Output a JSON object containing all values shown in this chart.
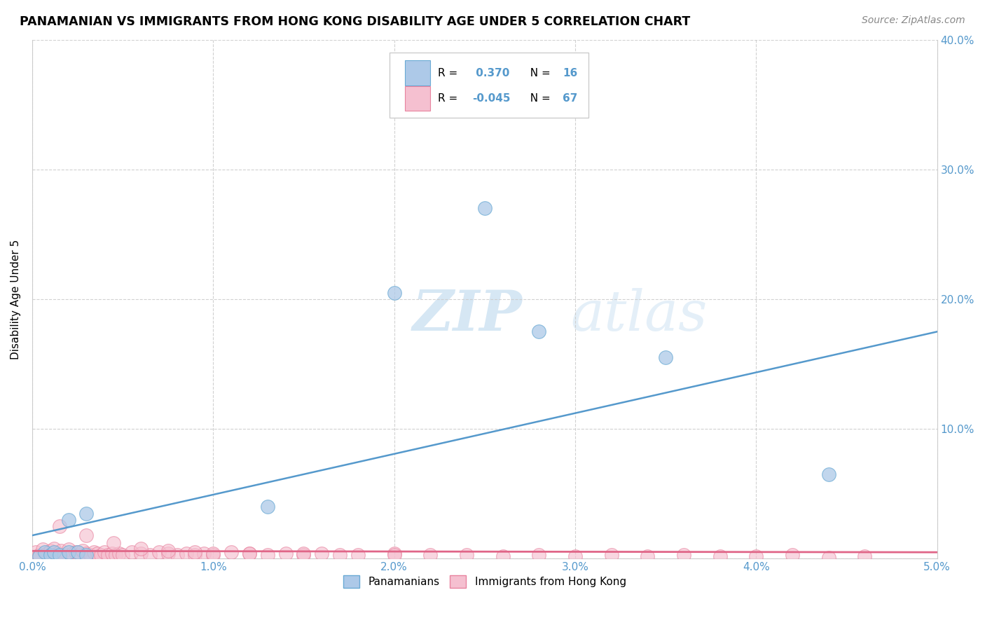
{
  "title": "PANAMANIAN VS IMMIGRANTS FROM HONG KONG DISABILITY AGE UNDER 5 CORRELATION CHART",
  "source": "Source: ZipAtlas.com",
  "ylabel": "Disability Age Under 5",
  "xlim": [
    0.0,
    0.05
  ],
  "ylim": [
    0.0,
    0.4
  ],
  "xticks": [
    0.0,
    0.01,
    0.02,
    0.03,
    0.04,
    0.05
  ],
  "yticks": [
    0.0,
    0.1,
    0.2,
    0.3,
    0.4
  ],
  "xticklabels": [
    "0.0%",
    "1.0%",
    "2.0%",
    "3.0%",
    "4.0%",
    "5.0%"
  ],
  "yticklabels_right": [
    "",
    "10.0%",
    "20.0%",
    "30.0%",
    "40.0%"
  ],
  "blue_fill": "#adc9e8",
  "blue_edge": "#6aaad4",
  "pink_fill": "#f5c0d0",
  "pink_edge": "#e8839f",
  "blue_line_color": "#5599cc",
  "pink_line_color": "#e06688",
  "R_blue": 0.37,
  "N_blue": 16,
  "R_pink": -0.045,
  "N_pink": 67,
  "legend_label_blue": "Panamanians",
  "legend_label_pink": "Immigrants from Hong Kong",
  "watermark_zip": "ZIP",
  "watermark_atlas": "atlas",
  "blue_line_x0": 0.0,
  "blue_line_y0": 0.018,
  "blue_line_x1": 0.05,
  "blue_line_y1": 0.175,
  "pink_line_x0": 0.0,
  "pink_line_y0": 0.006,
  "pink_line_x1": 0.05,
  "pink_line_y1": 0.005,
  "blue_x": [
    0.0004,
    0.0007,
    0.001,
    0.0012,
    0.0015,
    0.002,
    0.002,
    0.0025,
    0.003,
    0.003,
    0.013,
    0.02,
    0.025,
    0.035,
    0.044,
    0.028
  ],
  "blue_y": [
    0.002,
    0.005,
    0.003,
    0.005,
    0.003,
    0.005,
    0.03,
    0.005,
    0.003,
    0.035,
    0.04,
    0.205,
    0.27,
    0.155,
    0.065,
    0.175
  ],
  "pink_x": [
    0.0002,
    0.0004,
    0.0006,
    0.0008,
    0.001,
    0.0012,
    0.0014,
    0.0016,
    0.0018,
    0.002,
    0.0022,
    0.0024,
    0.0026,
    0.0028,
    0.003,
    0.0032,
    0.0034,
    0.0036,
    0.0038,
    0.004,
    0.0042,
    0.0044,
    0.0046,
    0.0048,
    0.005,
    0.0055,
    0.006,
    0.0065,
    0.007,
    0.0075,
    0.008,
    0.0085,
    0.009,
    0.0095,
    0.01,
    0.011,
    0.012,
    0.013,
    0.014,
    0.015,
    0.016,
    0.017,
    0.018,
    0.02,
    0.022,
    0.024,
    0.026,
    0.028,
    0.03,
    0.032,
    0.034,
    0.036,
    0.038,
    0.04,
    0.042,
    0.044,
    0.046,
    0.0015,
    0.003,
    0.0045,
    0.006,
    0.0075,
    0.009,
    0.01,
    0.012,
    0.015,
    0.02
  ],
  "pink_y": [
    0.005,
    0.003,
    0.007,
    0.004,
    0.006,
    0.008,
    0.004,
    0.006,
    0.003,
    0.007,
    0.004,
    0.005,
    0.003,
    0.006,
    0.004,
    0.003,
    0.005,
    0.004,
    0.003,
    0.005,
    0.003,
    0.004,
    0.003,
    0.004,
    0.003,
    0.005,
    0.004,
    0.003,
    0.005,
    0.004,
    0.003,
    0.004,
    0.003,
    0.004,
    0.003,
    0.005,
    0.004,
    0.003,
    0.004,
    0.003,
    0.004,
    0.003,
    0.003,
    0.004,
    0.003,
    0.003,
    0.002,
    0.003,
    0.002,
    0.003,
    0.002,
    0.003,
    0.002,
    0.002,
    0.003,
    0.001,
    0.002,
    0.025,
    0.018,
    0.012,
    0.008,
    0.006,
    0.005,
    0.004,
    0.004,
    0.004,
    0.003
  ]
}
